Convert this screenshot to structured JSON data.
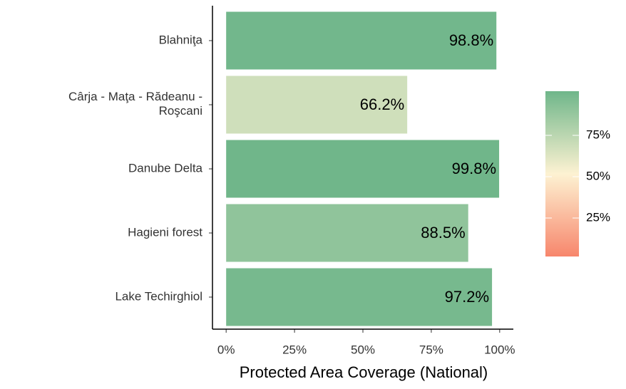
{
  "chart_data": {
    "type": "bar",
    "orientation": "horizontal",
    "x_label": "Protected Area Coverage (National)",
    "categories": [
      "Blahniţa",
      "Cârja - Maţa - Rădeanu -\nRoşcani",
      "Danube Delta",
      "Hagieni forest",
      "Lake Techirghiol"
    ],
    "values": [
      98.8,
      66.2,
      99.8,
      88.5,
      97.2
    ],
    "value_labels": [
      "98.8%",
      "66.2%",
      "99.8%",
      "88.5%",
      "97.2%"
    ],
    "xlim": [
      -5,
      105
    ],
    "xticks": [
      {
        "value": 0,
        "label": "0%"
      },
      {
        "value": 25,
        "label": "25%"
      },
      {
        "value": 50,
        "label": "50%"
      },
      {
        "value": 75,
        "label": "75%"
      },
      {
        "value": 100,
        "label": "100%"
      }
    ],
    "grid": false,
    "legend": {
      "position": "right",
      "range": [
        0,
        100
      ],
      "colors": [
        "#f7866c",
        "#fdf2d2",
        "#6fb68a"
      ],
      "ticks": [
        {
          "value": 25,
          "label": "25%"
        },
        {
          "value": 50,
          "label": "50%"
        },
        {
          "value": 75,
          "label": "75%"
        }
      ]
    }
  }
}
